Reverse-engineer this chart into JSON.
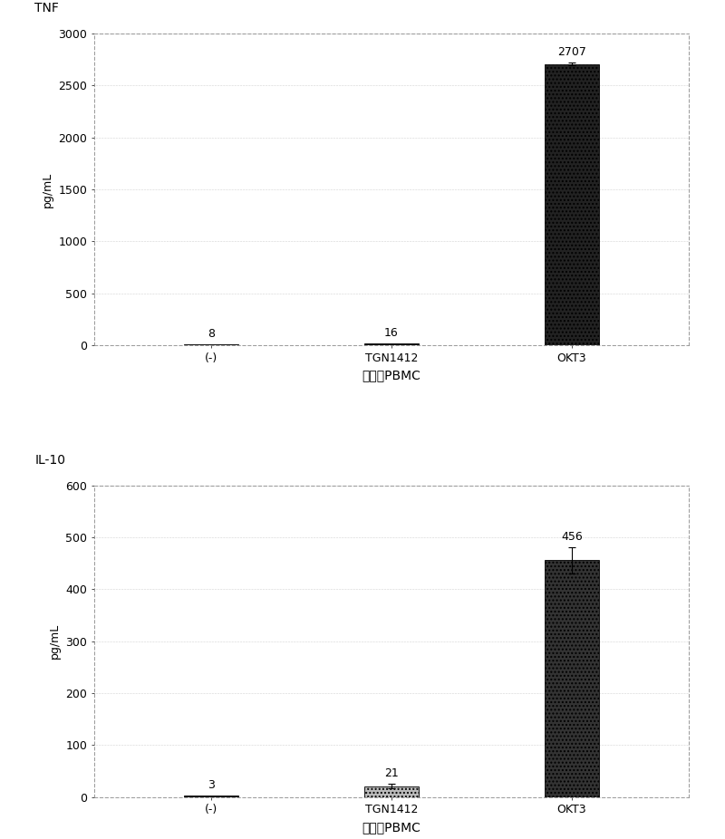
{
  "chart1": {
    "title": "TNF",
    "categories": [
      "(-)",
      "TGN1412",
      "OKT3"
    ],
    "values": [
      8,
      16,
      2707
    ],
    "errors": [
      0,
      0,
      15
    ],
    "ylabel": "pg/mL",
    "xlabel": "新鲜的PBMC",
    "ylim": [
      0,
      3000
    ],
    "yticks": [
      0,
      500,
      1000,
      1500,
      2000,
      2500,
      3000
    ],
    "bar_colors": [
      "#111111",
      "#111111",
      "#222222"
    ],
    "bar_hatches": [
      null,
      null,
      "...."
    ],
    "value_labels": [
      "8",
      "16",
      "2707"
    ]
  },
  "chart2": {
    "title": "IL-10",
    "categories": [
      "(-)",
      "TGN1412",
      "OKT3"
    ],
    "values": [
      3,
      21,
      456
    ],
    "errors": [
      0,
      4,
      25
    ],
    "ylabel": "pg/mL",
    "xlabel": "新鲜的PBMC",
    "ylim": [
      0,
      600
    ],
    "yticks": [
      0,
      100,
      200,
      300,
      400,
      500,
      600
    ],
    "bar_colors": [
      "#111111",
      "#bbbbbb",
      "#333333"
    ],
    "bar_hatches": [
      null,
      "....",
      "...."
    ],
    "value_labels": [
      "3",
      "21",
      "456"
    ]
  },
  "background_color": "#ffffff",
  "bar_width": 0.3,
  "figsize": [
    8.0,
    9.26
  ],
  "dpi": 100
}
